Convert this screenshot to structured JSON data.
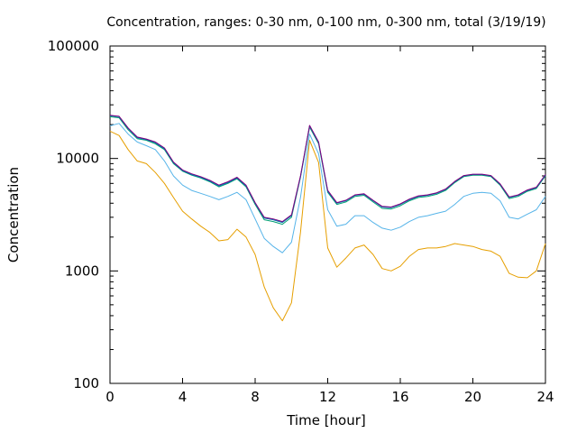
{
  "chart_data": {
    "type": "line",
    "title": "Concentration, ranges: 0-30 nm, 0-100 nm, 0-300 nm, total (3/19/19)",
    "xlabel": "Time [hour]",
    "ylabel": "Concentration",
    "xlim": [
      0,
      24
    ],
    "ylim": [
      100,
      100000
    ],
    "yscale": "log",
    "grid": false,
    "legend": "none",
    "x_ticks": [
      0,
      4,
      8,
      12,
      16,
      20,
      24
    ],
    "x_tick_labels": [
      "0",
      "4",
      "8",
      "12",
      "16",
      "20",
      "24"
    ],
    "y_ticks": [
      100,
      1000,
      10000,
      100000
    ],
    "y_tick_labels": [
      "100",
      "1000",
      "10000",
      "100000"
    ],
    "x": [
      0,
      0.5,
      1,
      1.5,
      2,
      2.5,
      3,
      3.5,
      4,
      4.5,
      5,
      5.5,
      6,
      6.5,
      7,
      7.5,
      8,
      8.5,
      9,
      9.5,
      10,
      10.5,
      11,
      11.5,
      12,
      12.5,
      13,
      13.5,
      14,
      14.5,
      15,
      15.5,
      16,
      16.5,
      17,
      17.5,
      18,
      18.5,
      19,
      19.5,
      20,
      20.5,
      21,
      21.5,
      22,
      22.5,
      23,
      23.5,
      24
    ],
    "series": [
      {
        "color": "#E69F00",
        "values": [
          17500,
          16000,
          12000,
          9500,
          9000,
          7500,
          6000,
          4500,
          3400,
          2900,
          2500,
          2200,
          1850,
          1900,
          2350,
          2000,
          1400,
          720,
          470,
          360,
          520,
          2200,
          14500,
          9200,
          1600,
          1080,
          1300,
          1600,
          1700,
          1400,
          1050,
          1000,
          1100,
          1350,
          1550,
          1600,
          1600,
          1650,
          1750,
          1700,
          1650,
          1550,
          1500,
          1350,
          950,
          880,
          870,
          1000,
          1750
        ]
      },
      {
        "color": "#56B4E9",
        "values": [
          19500,
          20500,
          16500,
          14000,
          13000,
          12000,
          9500,
          7000,
          5800,
          5200,
          4900,
          4600,
          4300,
          4600,
          5000,
          4300,
          2900,
          1950,
          1650,
          1450,
          1800,
          4500,
          16500,
          11000,
          3500,
          2500,
          2600,
          3100,
          3100,
          2700,
          2400,
          2300,
          2450,
          2750,
          3000,
          3100,
          3250,
          3400,
          3900,
          4600,
          4900,
          5000,
          4900,
          4200,
          3000,
          2900,
          3200,
          3500,
          4600
        ]
      },
      {
        "color": "#009E73",
        "values": [
          23500,
          23000,
          18000,
          15000,
          14500,
          13500,
          12000,
          9000,
          7700,
          7100,
          6700,
          6200,
          5600,
          6000,
          6600,
          5600,
          3900,
          2850,
          2750,
          2600,
          3000,
          6800,
          19000,
          13500,
          5000,
          3900,
          4100,
          4600,
          4700,
          4100,
          3600,
          3550,
          3800,
          4200,
          4500,
          4600,
          4800,
          5200,
          6100,
          6900,
          7100,
          7100,
          6900,
          5800,
          4400,
          4600,
          5100,
          5400,
          7000
        ]
      },
      {
        "color": "#0072B2",
        "values": [
          24000,
          23500,
          18500,
          15300,
          14700,
          13800,
          12200,
          9200,
          7800,
          7200,
          6800,
          6300,
          5700,
          6100,
          6700,
          5700,
          4000,
          2950,
          2850,
          2700,
          3100,
          6900,
          19500,
          13800,
          5100,
          4000,
          4200,
          4700,
          4800,
          4200,
          3700,
          3650,
          3900,
          4300,
          4600,
          4700,
          4900,
          5300,
          6200,
          7000,
          7200,
          7200,
          7000,
          5900,
          4500,
          4700,
          5200,
          5500,
          7100
        ]
      },
      {
        "color": "#7F007F",
        "values": [
          24200,
          23700,
          18700,
          15500,
          14900,
          14000,
          12400,
          9300,
          7900,
          7300,
          6900,
          6400,
          5800,
          6200,
          6800,
          5800,
          4050,
          3000,
          2900,
          2750,
          3150,
          7000,
          19700,
          14000,
          5200,
          4050,
          4250,
          4750,
          4850,
          4250,
          3750,
          3700,
          3950,
          4350,
          4650,
          4750,
          4950,
          5350,
          6250,
          7050,
          7250,
          7250,
          7050,
          5950,
          4550,
          4750,
          5250,
          5550,
          7200
        ]
      }
    ]
  }
}
